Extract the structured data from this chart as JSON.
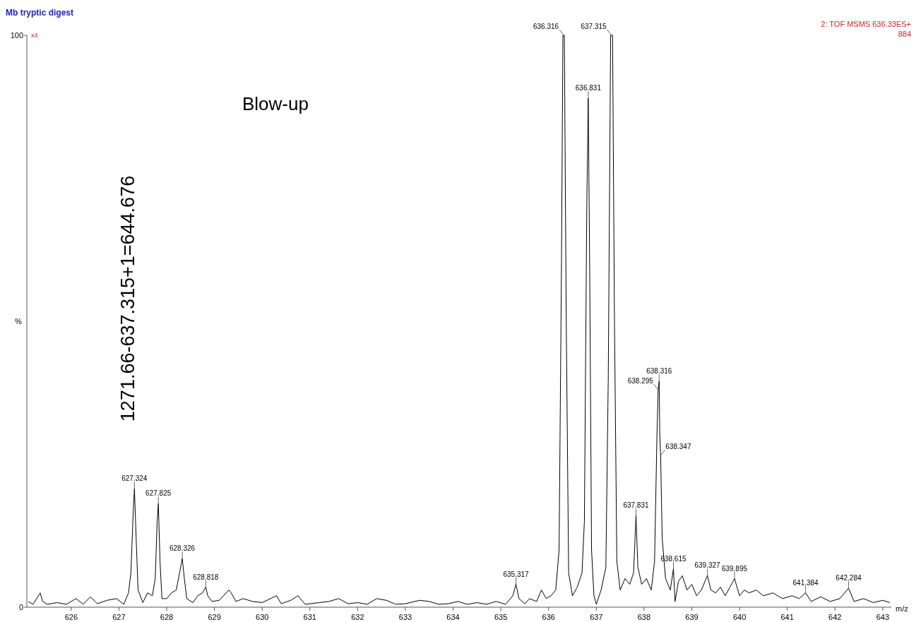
{
  "chart_data": {
    "type": "line",
    "title": "Mb tryptic digest",
    "xlabel": "m/z",
    "ylabel": "%",
    "xlim": [
      625.07,
      643.18
    ],
    "xticks": [
      626,
      627,
      628,
      629,
      630,
      631,
      632,
      633,
      634,
      635,
      636,
      637,
      638,
      639,
      640,
      641,
      642,
      643
    ],
    "ylim": [
      0,
      100
    ],
    "yticks": [
      0,
      100
    ],
    "grid": false,
    "marker": "none",
    "line_style": "solid",
    "series": [
      {
        "color": "#000000",
        "x": [
          625.1,
          625.2,
          625.35,
          625.4,
          625.5,
          625.7,
          625.9,
          626.1,
          626.25,
          626.4,
          626.55,
          626.75,
          626.95,
          627.1,
          627.2,
          627.25,
          627.3,
          627.324,
          627.36,
          627.4,
          627.5,
          627.6,
          627.7,
          627.76,
          627.8,
          627.825,
          627.86,
          627.9,
          628.0,
          628.1,
          628.2,
          628.27,
          628.326,
          628.37,
          628.42,
          628.55,
          628.65,
          628.75,
          628.818,
          628.86,
          628.95,
          629.1,
          629.3,
          629.35,
          629.45,
          629.6,
          629.8,
          630.0,
          630.3,
          630.4,
          630.6,
          630.75,
          630.9,
          631.2,
          631.4,
          631.6,
          631.8,
          632.0,
          632.2,
          632.4,
          632.6,
          632.8,
          633.0,
          633.3,
          633.5,
          633.7,
          633.9,
          634.1,
          634.3,
          634.5,
          634.7,
          634.9,
          635.1,
          635.25,
          635.317,
          635.38,
          635.5,
          635.6,
          635.75,
          635.85,
          635.95,
          636.05,
          636.15,
          636.22,
          636.27,
          636.3,
          636.33,
          636.37,
          636.42,
          636.5,
          636.6,
          636.7,
          636.75,
          636.8,
          636.831,
          636.86,
          636.9,
          636.95,
          637.0,
          637.1,
          637.2,
          637.25,
          637.3,
          637.34,
          637.38,
          637.43,
          637.5,
          637.6,
          637.7,
          637.78,
          637.831,
          637.87,
          637.95,
          638.05,
          638.15,
          638.22,
          638.27,
          638.295,
          638.316,
          638.33,
          638.347,
          638.38,
          638.45,
          638.55,
          638.615,
          638.65,
          638.72,
          638.8,
          638.9,
          639.0,
          639.1,
          639.2,
          639.327,
          639.4,
          639.5,
          639.6,
          639.7,
          639.8,
          639.895,
          640.0,
          640.1,
          640.2,
          640.35,
          640.5,
          640.7,
          640.9,
          641.1,
          641.25,
          641.384,
          641.5,
          641.7,
          641.9,
          642.1,
          642.284,
          642.4,
          642.6,
          642.8,
          643.0,
          643.15
        ],
        "values": [
          1,
          0.5,
          2.5,
          1,
          0.5,
          0.8,
          0.5,
          1.5,
          0.5,
          1.8,
          0.6,
          1.2,
          1.5,
          0.5,
          2.5,
          6,
          17,
          20.7,
          12,
          3,
          0.8,
          2.5,
          2,
          5,
          15,
          18.1,
          8,
          1.5,
          1.5,
          2.5,
          3,
          6,
          8.5,
          5,
          1.5,
          0.8,
          2,
          2.5,
          3.5,
          2,
          1,
          1.2,
          3,
          2.5,
          1,
          1.5,
          1,
          0.8,
          2,
          0.6,
          1.2,
          2,
          0.5,
          0.8,
          1,
          1.5,
          0.6,
          0.8,
          0.5,
          1.5,
          1.2,
          0.5,
          0.6,
          1.2,
          1,
          0.5,
          0.6,
          1,
          0.5,
          0.8,
          0.5,
          1,
          0.5,
          2,
          4,
          1.5,
          0.6,
          1.5,
          1,
          3,
          1.5,
          2,
          3,
          10,
          60,
          100,
          100,
          50,
          6,
          2,
          3.5,
          6,
          15,
          70,
          89,
          60,
          10,
          2,
          0.5,
          3,
          7,
          40,
          100,
          100,
          50,
          8,
          3,
          5,
          4,
          6,
          16,
          7,
          4,
          5,
          3,
          8,
          30,
          38,
          39.5,
          30,
          26.5,
          12,
          5,
          3,
          6.7,
          1,
          4.5,
          5.5,
          3,
          4,
          2,
          3,
          5.5,
          3,
          2.5,
          3.5,
          2,
          3.5,
          5,
          2,
          3,
          2.5,
          3,
          2,
          2.5,
          1.5,
          2,
          1.5,
          2.5,
          1,
          1.8,
          1,
          1.5,
          3.3,
          1,
          1.5,
          0.8,
          1.2,
          0.8
        ]
      }
    ],
    "annotations": [
      "x4",
      "2: TOF MSMS 636.33ES+",
      "884",
      "Blow-up",
      "1271.66-637.315+1=644.676",
      {
        "text": "627.324",
        "x": 627.324,
        "y": 20.7
      },
      {
        "text": "627.825",
        "x": 627.825,
        "y": 18.1
      },
      {
        "text": "628.326",
        "x": 628.326,
        "y": 8.5
      },
      {
        "text": "628.818",
        "x": 628.818,
        "y": 3.5
      },
      {
        "text": "635.317",
        "x": 635.317,
        "y": 4
      },
      {
        "text": "636.316",
        "x": 636.316,
        "y": 100
      },
      {
        "text": "636.831",
        "x": 636.831,
        "y": 89
      },
      {
        "text": "637.315",
        "x": 637.315,
        "y": 100
      },
      {
        "text": "637.831",
        "x": 637.831,
        "y": 16
      },
      {
        "text": "638.295",
        "x": 638.295,
        "y": 38
      },
      {
        "text": "638.316",
        "x": 638.316,
        "y": 39.5
      },
      {
        "text": "638.347",
        "x": 638.347,
        "y": 26.5
      },
      {
        "text": "638.615",
        "x": 638.615,
        "y": 6.7
      },
      {
        "text": "639.327",
        "x": 639.327,
        "y": 5.5
      },
      {
        "text": "639.895",
        "x": 639.895,
        "y": 5
      },
      {
        "text": "641.384",
        "x": 641.384,
        "y": 2.5
      },
      {
        "text": "642.284",
        "x": 642.284,
        "y": 3.3
      }
    ]
  }
}
